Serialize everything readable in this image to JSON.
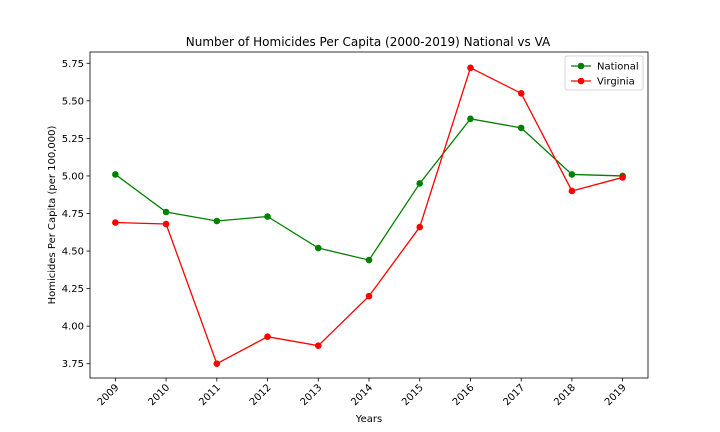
{
  "chart_data": {
    "type": "line",
    "title": "Number of Homicides Per Capita (2000-2019) National vs VA",
    "xlabel": "Years",
    "ylabel": "Homicides Per Capita (per 100,000)",
    "x": [
      "2009",
      "2010",
      "2011",
      "2012",
      "2013",
      "2014",
      "2015",
      "2016",
      "2017",
      "2018",
      "2019"
    ],
    "series": [
      {
        "name": "National",
        "color": "#008000",
        "values": [
          5.01,
          4.76,
          4.7,
          4.73,
          4.52,
          4.44,
          4.95,
          5.38,
          5.32,
          5.01,
          5.0
        ]
      },
      {
        "name": "Virginia",
        "color": "#ff0000",
        "values": [
          4.69,
          4.68,
          3.75,
          3.93,
          3.87,
          4.2,
          4.66,
          5.72,
          5.55,
          4.9,
          4.99
        ]
      }
    ],
    "yticks": [
      "3.75",
      "4.00",
      "4.25",
      "4.50",
      "4.75",
      "5.00",
      "5.25",
      "5.50",
      "5.75"
    ],
    "ylim": [
      3.655,
      5.825
    ],
    "grid": false,
    "legend_position": "top-right"
  }
}
